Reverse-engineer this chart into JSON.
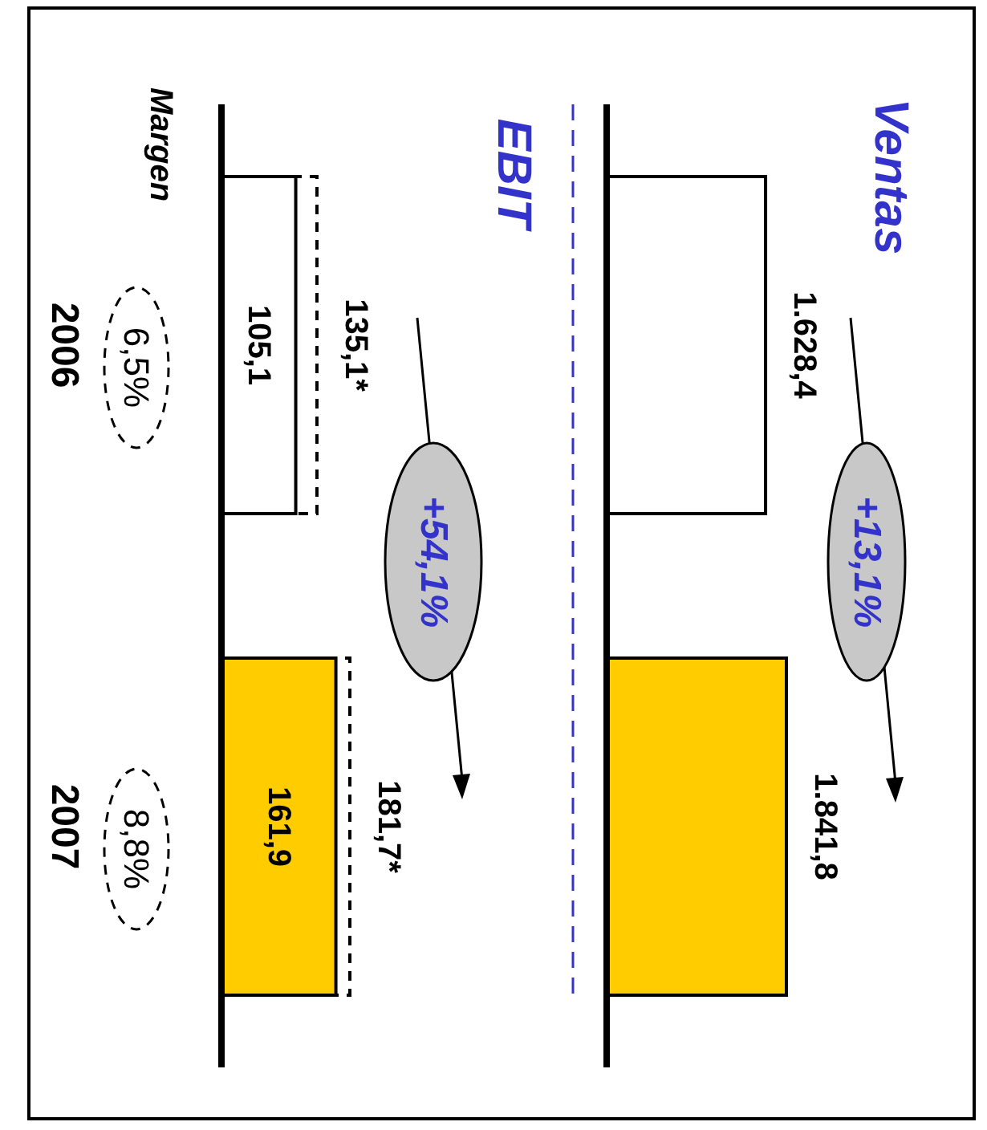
{
  "chart_data": [
    {
      "type": "bar",
      "orientation": "horizontal",
      "categories": [
        "2006",
        "2007"
      ],
      "tick_labels": false,
      "series": [
        {
          "colors": [
            "#ffffff",
            "#ffcc00"
          ],
          "values": [
            1628.4,
            1841.8
          ],
          "value_labels": [
            "1.628,4",
            "1.841,8"
          ]
        }
      ],
      "annotations": [
        "Ventas",
        "+13,1%"
      ]
    },
    {
      "type": "bar",
      "orientation": "horizontal",
      "categories": [
        "2006",
        "2007"
      ],
      "tick_labels": "y",
      "series": [
        {
          "colors": [
            "#ffffff",
            "#ffcc00"
          ],
          "values": [
            105.1,
            161.9
          ],
          "value_labels": [
            "105,1",
            "161,9"
          ]
        },
        {
          "color": "#000000",
          "line_style": "dashed",
          "values": [
            135.1,
            181.7
          ],
          "value_labels": [
            "135,1*",
            "181,7*"
          ]
        }
      ],
      "annotations": [
        "EBIT",
        "+54,1%",
        "Margen",
        "6,5%",
        "8,8%"
      ]
    }
  ]
}
